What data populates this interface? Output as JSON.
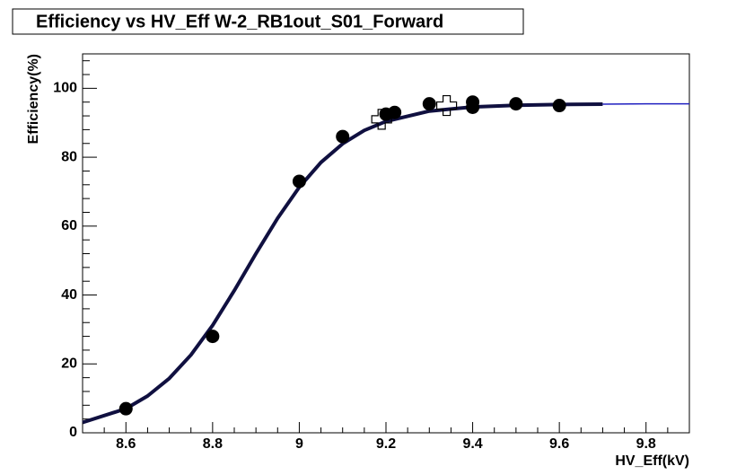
{
  "chart_data": {
    "type": "scatter",
    "title": "Efficiency vs HV_Eff W-2_RB1out_S01_Forward",
    "x_label": "HV_Eff(kV)",
    "y_label": "Efficiency(%)",
    "xlim": [
      8.5,
      9.9
    ],
    "ylim": [
      0,
      110
    ],
    "xticks": [
      8.6,
      8.8,
      9,
      9.2,
      9.4,
      9.6,
      9.8
    ],
    "yticks": [
      0,
      20,
      40,
      60,
      80,
      100
    ],
    "series": [
      {
        "marker": "circle",
        "color": "#000000",
        "x": [
          8.6,
          8.8,
          9.0,
          9.1,
          9.2,
          9.22,
          9.3,
          9.4,
          9.4,
          9.5,
          9.6
        ],
        "values": [
          7,
          28,
          73,
          86,
          92.5,
          93,
          95.5,
          96,
          94.5,
          95.5,
          95
        ]
      },
      {
        "marker": "open-cross",
        "color": "#000000",
        "x": [
          9.19,
          9.34
        ],
        "values": [
          91,
          95
        ]
      },
      {
        "line": "thick",
        "color": "#101040",
        "x": [
          8.5,
          8.6,
          8.65,
          8.7,
          8.75,
          8.8,
          8.85,
          8.9,
          8.95,
          9.0,
          9.05,
          9.1,
          9.15,
          9.2,
          9.3,
          9.4,
          9.5,
          9.6,
          9.7
        ],
        "values": [
          3.0,
          7.0,
          10.7,
          15.8,
          22.6,
          31.2,
          41.3,
          52.0,
          62.3,
          71.3,
          78.5,
          83.9,
          87.8,
          90.4,
          93.4,
          94.6,
          95.1,
          95.3,
          95.4
        ]
      },
      {
        "line": "thin",
        "color": "#2020c0",
        "x": [
          9.7,
          9.8,
          9.9
        ],
        "values": [
          95.4,
          95.5,
          95.5
        ]
      }
    ]
  }
}
